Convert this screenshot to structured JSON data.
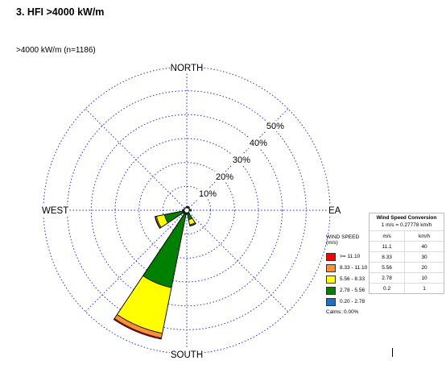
{
  "heading": "3.   HFI >4000 kW/m",
  "subheading": ">4000 kW/m (n=1186)",
  "chart_data": {
    "type": "windrose",
    "directions": {
      "north": "NORTH",
      "south": "SOUTH",
      "west": "WEST",
      "east": "EA"
    },
    "radial_labels": [
      "10%",
      "20%",
      "30%",
      "40%",
      "50%"
    ],
    "radial_max": 60,
    "speed_classes": [
      {
        "label": ">= 11.10",
        "color": "#ff0000"
      },
      {
        "label": "8.33 - 11.10",
        "color": "#f7923a"
      },
      {
        "label": "5.56 - 8.33",
        "color": "#ffff00"
      },
      {
        "label": "2.78 - 5.56",
        "color": "#008000"
      },
      {
        "label": "0.20 - 2.78",
        "color": "#1f6fc7"
      }
    ],
    "sectors": [
      {
        "bearing": 0,
        "cumulative": [
          0.6,
          1.5
        ]
      },
      {
        "bearing": 22.5,
        "cumulative": [
          0.6,
          1.7
        ]
      },
      {
        "bearing": 45,
        "cumulative": [
          0.6,
          1.2
        ]
      },
      {
        "bearing": 67.5,
        "cumulative": [
          0.6,
          1.3
        ]
      },
      {
        "bearing": 90,
        "cumulative": [
          0.6,
          1.9
        ]
      },
      {
        "bearing": 112.5,
        "cumulative": [
          0.6,
          1.0
        ]
      },
      {
        "bearing": 135,
        "cumulative": [
          0.6,
          1.1
        ]
      },
      {
        "bearing": 157.5,
        "cumulative": [
          1.0,
          4.0,
          6.2,
          6.6,
          6.8
        ]
      },
      {
        "bearing": 180,
        "cumulative": [
          0.6,
          1.0
        ]
      },
      {
        "bearing": 202.5,
        "cumulative": [
          1.5,
          33.0,
          52.5,
          54.5,
          55.0
        ]
      },
      {
        "bearing": 225,
        "cumulative": [
          1.0,
          2.0
        ]
      },
      {
        "bearing": 247.5,
        "cumulative": [
          1.5,
          9.5,
          12.9,
          13.4,
          13.6
        ]
      },
      {
        "bearing": 270,
        "cumulative": [
          0.6,
          1.8
        ]
      },
      {
        "bearing": 292.5,
        "cumulative": [
          0.6,
          1.3
        ]
      },
      {
        "bearing": 315,
        "cumulative": [
          0.6,
          1.0
        ]
      },
      {
        "bearing": 337.5,
        "cumulative": [
          0.6,
          1.2
        ]
      }
    ]
  },
  "legend": {
    "title_line1": "WIND SPEED",
    "title_line2": "(m/s)",
    "calms": "Calms: 0.00%"
  },
  "conversion": {
    "title": "Wind Speed Conversion",
    "formula": "1 m/s = 0.27778 km/h",
    "headers": [
      "m/s",
      "km/h"
    ],
    "rows": [
      [
        "11.1",
        "40"
      ],
      [
        "8.33",
        "30"
      ],
      [
        "5.56",
        "20"
      ],
      [
        "2.78",
        "10"
      ],
      [
        "0.2",
        "1"
      ]
    ]
  }
}
